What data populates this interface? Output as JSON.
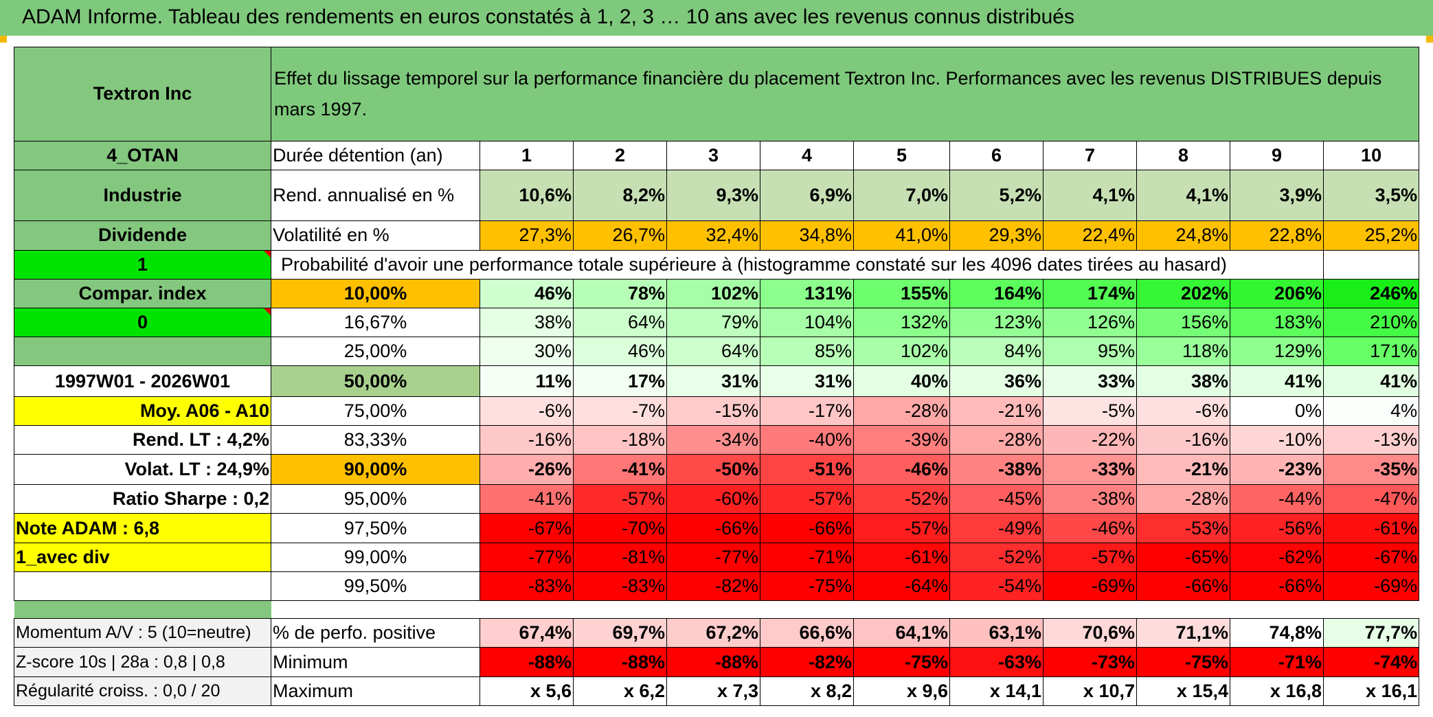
{
  "header": {
    "title": "ADAM Informe. Tableau des rendements en euros constatés à 1, 2, 3 … 10 ans avec les revenus connus distribués"
  },
  "info": {
    "fund_name": "Textron Inc",
    "description": "Effet du lissage temporel sur la performance financière du placement Textron Inc. Performances avec les revenus DISTRIBUES depuis mars 1997.",
    "code": "4_OTAN",
    "sector": "Industrie",
    "income_type": "Dividende",
    "flag1": "1",
    "compar_label": "Compar. index",
    "flag2": "0",
    "period": "1997W01 - 2026W01",
    "moy_label": "Moy. A06 - A10",
    "rend_lt": "Rend. LT :   4,2%",
    "volat_lt": "Volat. LT :   24,9%",
    "sharpe": "Ratio Sharpe :    0,2",
    "note_adam": "Note ADAM : 6,8",
    "avec_div": "1_avec div",
    "momentum": "Momentum A/V : 5 (10=neutre)",
    "zscore": "Z-score 10s | 28a : 0,8 | 0,8",
    "regularite": "Régularité croiss. : 0,0 / 20"
  },
  "labels": {
    "duree": "Durée détention (an)",
    "rend": "Rend. annualisé en %",
    "vol": "Volatilité en %",
    "prob": "Probabilité d'avoir une performance totale supérieure à (histogramme constaté sur les 4096 dates tirées au hasard)",
    "pct_pos": "% de perfo. positive",
    "min": "Minimum",
    "max": "Maximum"
  },
  "years": [
    "1",
    "2",
    "3",
    "4",
    "5",
    "6",
    "7",
    "8",
    "9",
    "10"
  ],
  "rend": [
    "10,6%",
    "8,2%",
    "9,3%",
    "6,9%",
    "7,0%",
    "5,2%",
    "4,1%",
    "4,1%",
    "3,9%",
    "3,5%"
  ],
  "vol": [
    "27,3%",
    "26,7%",
    "32,4%",
    "34,8%",
    "41,0%",
    "29,3%",
    "22,4%",
    "24,8%",
    "22,8%",
    "25,2%"
  ],
  "prob_rows": [
    {
      "label": "10,00%",
      "values": [
        "46%",
        "78%",
        "102%",
        "131%",
        "155%",
        "164%",
        "174%",
        "202%",
        "206%",
        "246%"
      ],
      "colors": [
        "#cfffcf",
        "#b6ffb6",
        "#a6ffa6",
        "#8dff8d",
        "#6dff6d",
        "#5cff5c",
        "#52fc52",
        "#36f736",
        "#33f633",
        "#19ee19"
      ]
    },
    {
      "label": "16,67%",
      "values": [
        "38%",
        "64%",
        "79%",
        "104%",
        "132%",
        "123%",
        "126%",
        "156%",
        "183%",
        "210%"
      ],
      "colors": [
        "#e4ffe4",
        "#ccffcc",
        "#bdffbd",
        "#a6ffa6",
        "#8cff8c",
        "#94ff94",
        "#91ff91",
        "#76ff76",
        "#5cff5c",
        "#45fa45"
      ]
    },
    {
      "label": "25,00%",
      "values": [
        "30%",
        "46%",
        "64%",
        "85%",
        "102%",
        "84%",
        "95%",
        "118%",
        "129%",
        "171%"
      ],
      "colors": [
        "#eeffee",
        "#dcffdc",
        "#ccffcc",
        "#b8ffb8",
        "#a8ffa8",
        "#b9ffb9",
        "#aeffae",
        "#99ff99",
        "#8eff8e",
        "#66ff66"
      ]
    },
    {
      "label": "50,00%",
      "values": [
        "11%",
        "17%",
        "31%",
        "31%",
        "40%",
        "36%",
        "33%",
        "38%",
        "41%",
        "41%"
      ],
      "colors": [
        "#f6fff6",
        "#f2fff2",
        "#e8ffe8",
        "#e8ffe8",
        "#e2ffe2",
        "#e5ffe5",
        "#e7ffe7",
        "#e3ffe3",
        "#e1ffe1",
        "#e1ffe1"
      ]
    },
    {
      "label": "75,00%",
      "values": [
        "-6%",
        "-7%",
        "-15%",
        "-17%",
        "-28%",
        "-21%",
        "-5%",
        "-6%",
        "0%",
        "4%"
      ],
      "colors": [
        "#ffe0e0",
        "#ffdede",
        "#ffcaca",
        "#ffc6c6",
        "#ffa8a8",
        "#ffbaba",
        "#ffe3e3",
        "#ffe0e0",
        "#ffffff",
        "#fbfffb"
      ]
    },
    {
      "label": "83,33%",
      "values": [
        "-16%",
        "-18%",
        "-34%",
        "-40%",
        "-39%",
        "-28%",
        "-22%",
        "-16%",
        "-10%",
        "-13%"
      ],
      "colors": [
        "#ffc8c8",
        "#ffc3c3",
        "#ff8e8e",
        "#ff7a7a",
        "#ff7e7e",
        "#ffa8a8",
        "#ffb6b6",
        "#ffc8c8",
        "#ffd6d6",
        "#ffcfcf"
      ]
    },
    {
      "label": "90,00%",
      "values": [
        "-26%",
        "-41%",
        "-50%",
        "-51%",
        "-46%",
        "-38%",
        "-33%",
        "-21%",
        "-23%",
        "-35%"
      ],
      "colors": [
        "#ffadad",
        "#ff7676",
        "#ff4a4a",
        "#ff4444",
        "#ff5e5e",
        "#ff8282",
        "#ff9494",
        "#ffbaba",
        "#ffb3b3",
        "#ff8a8a"
      ]
    },
    {
      "label": "95,00%",
      "values": [
        "-41%",
        "-57%",
        "-60%",
        "-57%",
        "-52%",
        "-45%",
        "-38%",
        "-28%",
        "-44%",
        "-47%"
      ],
      "colors": [
        "#ff7070",
        "#ff2b2b",
        "#ff2020",
        "#ff2b2b",
        "#ff3c3c",
        "#ff5e5e",
        "#ff8282",
        "#ffa8a8",
        "#ff6464",
        "#ff5858"
      ]
    },
    {
      "label": "97,50%",
      "values": [
        "-67%",
        "-70%",
        "-66%",
        "-66%",
        "-57%",
        "-49%",
        "-46%",
        "-53%",
        "-56%",
        "-61%"
      ],
      "colors": [
        "#ff0000",
        "#ff0000",
        "#ff0000",
        "#ff0000",
        "#ff1c1c",
        "#ff3a3a",
        "#ff4848",
        "#ff2e2e",
        "#ff2222",
        "#ff0e0e"
      ]
    },
    {
      "label": "99,00%",
      "values": [
        "-77%",
        "-81%",
        "-77%",
        "-71%",
        "-61%",
        "-52%",
        "-57%",
        "-65%",
        "-62%",
        "-67%"
      ],
      "colors": [
        "#ff0000",
        "#ff0000",
        "#ff0000",
        "#ff0000",
        "#ff0808",
        "#ff2e2e",
        "#ff1a1a",
        "#ff0000",
        "#ff0404",
        "#ff0000"
      ]
    },
    {
      "label": "99,50%",
      "values": [
        "-83%",
        "-83%",
        "-82%",
        "-75%",
        "-64%",
        "-54%",
        "-69%",
        "-66%",
        "-66%",
        "-69%"
      ],
      "colors": [
        "#ff0000",
        "#ff0000",
        "#ff0000",
        "#ff0000",
        "#ff0000",
        "#ff2222",
        "#ff0000",
        "#ff0000",
        "#ff0000",
        "#ff0000"
      ]
    }
  ],
  "pct_pos": [
    "67,4%",
    "69,7%",
    "67,2%",
    "66,6%",
    "64,1%",
    "63,1%",
    "70,6%",
    "71,1%",
    "74,8%",
    "77,7%"
  ],
  "pct_pos_colors": [
    "#ffcece",
    "#ffd2d2",
    "#ffcccc",
    "#ffcaca",
    "#ffc3c3",
    "#ffc0c0",
    "#ffd8d8",
    "#ffdcdc",
    "#ffffff",
    "#e6ffe6"
  ],
  "min": [
    "-88%",
    "-88%",
    "-88%",
    "-82%",
    "-75%",
    "-63%",
    "-73%",
    "-75%",
    "-71%",
    "-74%"
  ],
  "min_colors": [
    "#ff0000",
    "#ff0000",
    "#ff0000",
    "#ff0000",
    "#ff0000",
    "#ff1010",
    "#ff0000",
    "#ff0000",
    "#ff0000",
    "#ff0000"
  ],
  "max": [
    "x 5,6",
    "x 6,2",
    "x 7,3",
    "x 8,2",
    "x 9,6",
    "x 14,1",
    "x 10,7",
    "x 15,4",
    "x 16,8",
    "x 16,1"
  ],
  "colors": {
    "title_green": "#7fc97d",
    "label_green": "#84c77f",
    "bright_green": "#00e300",
    "orange": "#ffc000",
    "yellow": "#ffff00",
    "rend_green": "#c6e0b4",
    "median_green": "#a9d18e",
    "red_text": "#d0021b"
  }
}
